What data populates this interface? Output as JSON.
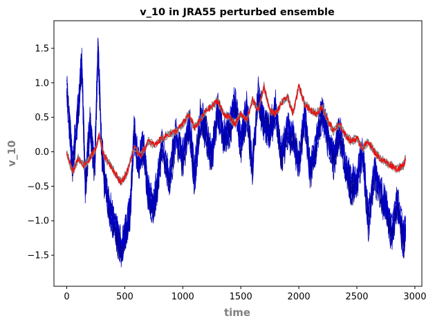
{
  "chart_data": {
    "type": "line",
    "title": "v_10 in JRA55 perturbed ensemble",
    "xlabel": "time",
    "ylabel": "v_10",
    "xlim": [
      -110,
      3060
    ],
    "ylim": [
      -1.95,
      1.9
    ],
    "xticks": [
      0,
      500,
      1000,
      1500,
      2000,
      2500,
      3000
    ],
    "yticks": [
      -1.5,
      -1.0,
      -0.5,
      0.0,
      0.5,
      1.0,
      1.5
    ],
    "ytick_labels": [
      "−1.5",
      "−1.0",
      "−0.5",
      "0.0",
      "0.5",
      "1.0",
      "1.5"
    ],
    "grid": false,
    "legend": "none",
    "colors": {
      "ensemble_members": "#0000cc",
      "members_dark": "#00008b",
      "ensemble_means": "#808080",
      "highlight_mean": "#ee1111"
    },
    "series": [
      {
        "role": "members",
        "color": "#0000cc",
        "count": 6,
        "x": [
          0,
          50,
          100,
          130,
          160,
          200,
          240,
          270,
          300,
          330,
          380,
          430,
          470,
          520,
          550,
          580,
          620,
          660,
          700,
          740,
          780,
          820,
          880,
          940,
          1000,
          1060,
          1100,
          1150,
          1200,
          1250,
          1300,
          1350,
          1400,
          1450,
          1500,
          1550,
          1600,
          1650,
          1700,
          1750,
          1800,
          1850,
          1900,
          1950,
          2000,
          2050,
          2100,
          2150,
          2200,
          2250,
          2300,
          2350,
          2400,
          2450,
          2500,
          2550,
          2600,
          2650,
          2700,
          2750,
          2800,
          2850,
          2900,
          2920
        ],
        "values": [
          0.9,
          -0.2,
          0.6,
          1.3,
          -0.5,
          0.4,
          -0.3,
          1.5,
          0.1,
          -0.5,
          -0.9,
          -1.2,
          -1.4,
          -1.1,
          -0.8,
          0.3,
          -0.2,
          0.1,
          -0.6,
          -0.8,
          -0.5,
          0.1,
          -0.4,
          0.2,
          -0.1,
          0.4,
          -0.4,
          0.5,
          0.3,
          -0.1,
          0.6,
          0.2,
          0.3,
          0.7,
          0.1,
          0.6,
          -0.2,
          0.8,
          0.4,
          0.3,
          0.6,
          -0.1,
          0.3,
          0.2,
          -0.2,
          0.5,
          -0.3,
          0.1,
          0.6,
          0.2,
          -0.1,
          0.3,
          -0.2,
          -0.5,
          -0.4,
          0.0,
          -1.0,
          -0.3,
          -0.6,
          -0.8,
          -1.2,
          -0.7,
          -1.3,
          -1.1
        ]
      },
      {
        "role": "ensemble-mean",
        "color": "#808080",
        "count": 3,
        "x": [
          0,
          50,
          100,
          150,
          200,
          250,
          280,
          320,
          380,
          430,
          470,
          520,
          580,
          640,
          700,
          760,
          820,
          880,
          940,
          1000,
          1050,
          1100,
          1150,
          1200,
          1250,
          1300,
          1350,
          1400,
          1450,
          1500,
          1550,
          1600,
          1650,
          1700,
          1750,
          1800,
          1850,
          1900,
          1950,
          2000,
          2050,
          2100,
          2150,
          2200,
          2250,
          2300,
          2350,
          2400,
          2450,
          2500,
          2550,
          2600,
          2650,
          2700,
          2750,
          2800,
          2850,
          2900,
          2920
        ],
        "values": [
          0.0,
          -0.3,
          -0.1,
          -0.2,
          -0.1,
          0.05,
          0.25,
          -0.05,
          -0.2,
          -0.35,
          -0.45,
          -0.3,
          0.05,
          -0.05,
          0.15,
          0.1,
          0.2,
          0.25,
          0.3,
          0.4,
          0.55,
          0.35,
          0.45,
          0.6,
          0.65,
          0.75,
          0.55,
          0.5,
          0.4,
          0.55,
          0.45,
          0.75,
          0.6,
          0.95,
          0.6,
          0.55,
          0.7,
          0.8,
          0.55,
          0.95,
          0.7,
          0.6,
          0.55,
          0.65,
          0.45,
          0.3,
          0.4,
          0.25,
          0.15,
          0.2,
          0.05,
          0.15,
          0.0,
          -0.1,
          -0.15,
          -0.2,
          -0.25,
          -0.2,
          -0.1
        ]
      },
      {
        "role": "highlighted-mean",
        "color": "#ee1111",
        "count": 1,
        "x": [
          0,
          50,
          100,
          150,
          200,
          250,
          280,
          320,
          380,
          430,
          470,
          520,
          580,
          640,
          700,
          760,
          820,
          880,
          940,
          1000,
          1050,
          1100,
          1150,
          1200,
          1250,
          1300,
          1350,
          1400,
          1450,
          1500,
          1550,
          1600,
          1650,
          1700,
          1750,
          1800,
          1850,
          1900,
          1950,
          2000,
          2050,
          2100,
          2150,
          2200,
          2250,
          2300,
          2350,
          2400,
          2450,
          2500,
          2550,
          2600,
          2650,
          2700,
          2750,
          2800,
          2850,
          2900,
          2920
        ],
        "values": [
          0.0,
          -0.3,
          -0.1,
          -0.2,
          -0.1,
          0.05,
          0.25,
          -0.05,
          -0.2,
          -0.35,
          -0.45,
          -0.3,
          0.05,
          -0.05,
          0.15,
          0.1,
          0.2,
          0.25,
          0.3,
          0.4,
          0.55,
          0.35,
          0.45,
          0.6,
          0.65,
          0.75,
          0.55,
          0.5,
          0.4,
          0.55,
          0.45,
          0.75,
          0.6,
          0.95,
          0.6,
          0.55,
          0.7,
          0.8,
          0.55,
          0.95,
          0.7,
          0.6,
          0.55,
          0.65,
          0.45,
          0.3,
          0.4,
          0.25,
          0.15,
          0.2,
          0.05,
          0.15,
          0.0,
          -0.1,
          -0.15,
          -0.2,
          -0.25,
          -0.2,
          -0.1
        ]
      }
    ]
  }
}
